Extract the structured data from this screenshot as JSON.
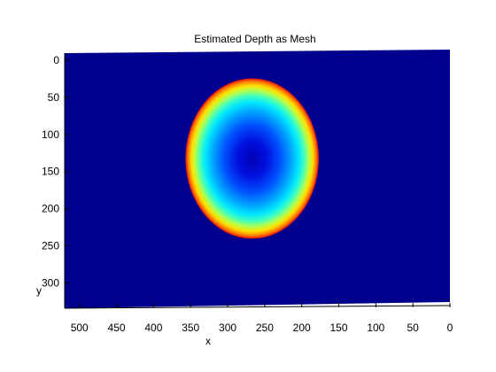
{
  "chart_data": {
    "type": "heatmap",
    "title": "Estimated Depth as Mesh",
    "xlabel": "x",
    "ylabel": "y",
    "x_ticks": [
      500,
      450,
      400,
      350,
      300,
      250,
      200,
      150,
      100,
      50,
      0
    ],
    "y_ticks": [
      0,
      50,
      100,
      150,
      200,
      250,
      300
    ],
    "x_axis_direction": "reversed",
    "xlim": [
      0,
      520
    ],
    "ylim": [
      0,
      340
    ],
    "colormap": "jet",
    "background_color": "#00008f",
    "surface": {
      "shape": "circular bowl",
      "center_x": 267,
      "center_y": 142,
      "radius_x": 90,
      "radius_y": 108,
      "min_depth_at": "center",
      "max_depth_at": "rim"
    }
  }
}
